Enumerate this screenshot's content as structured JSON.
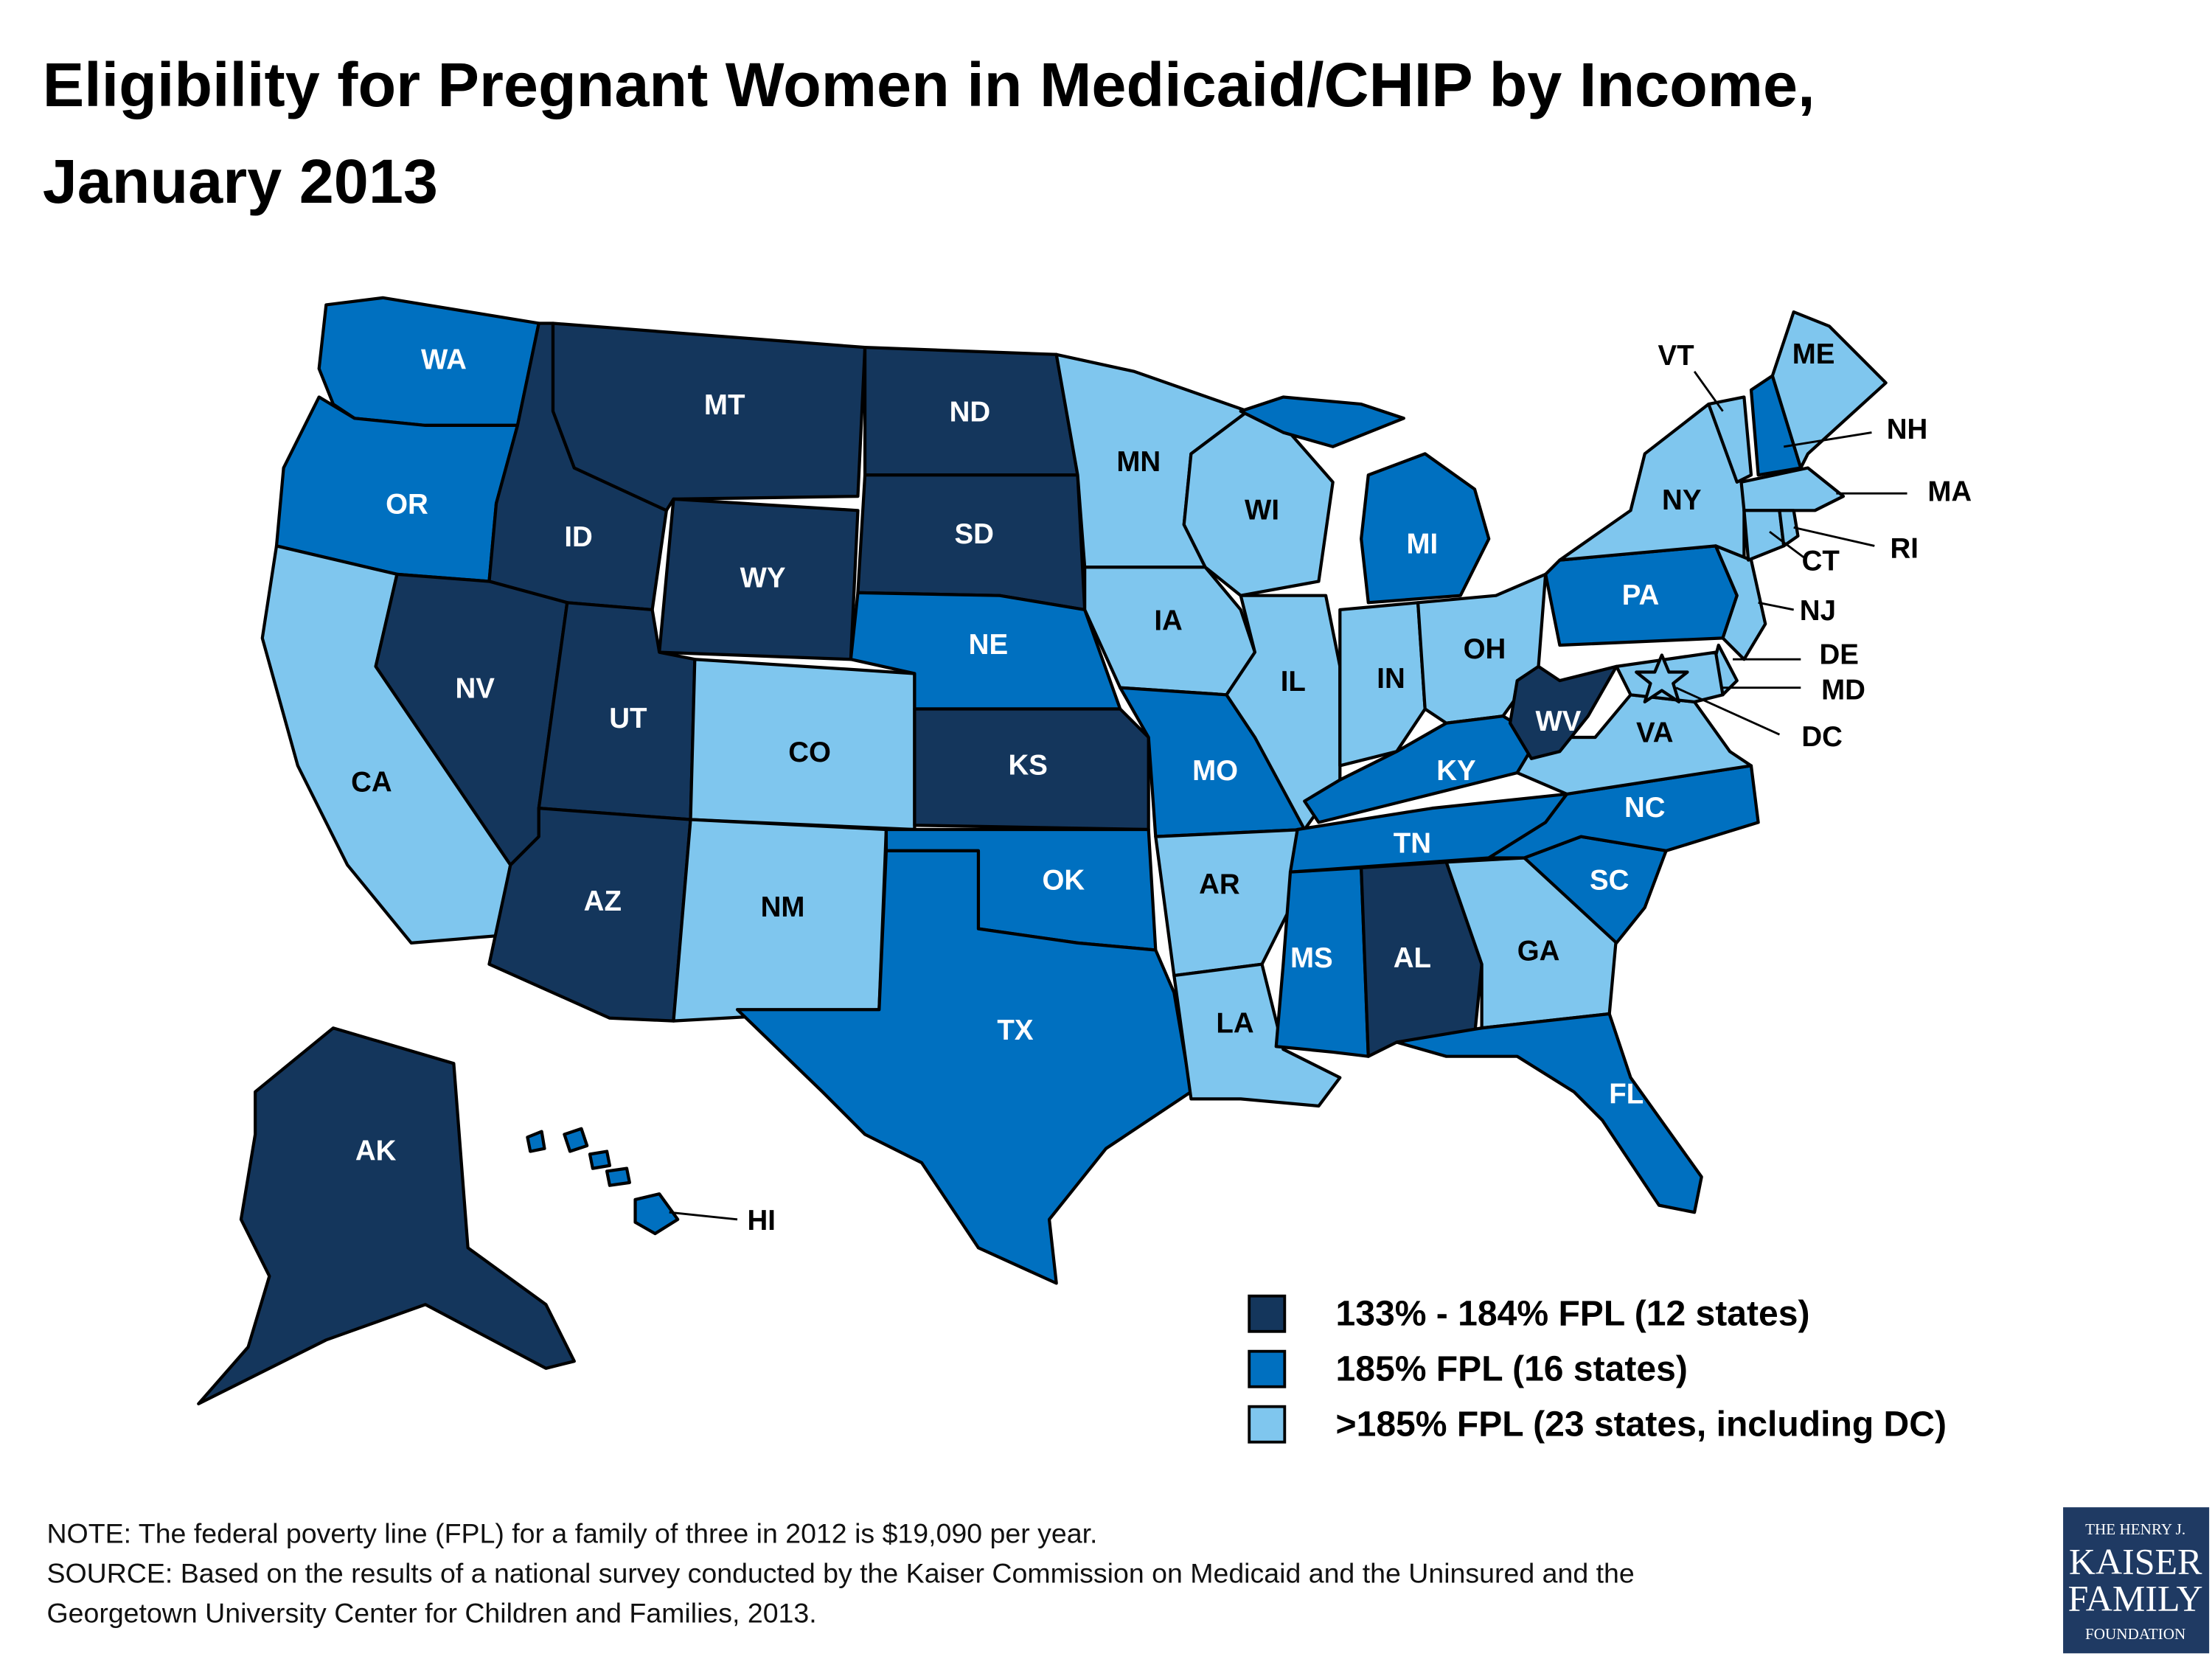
{
  "title": [
    "Eligibility for Pregnant Women in Medicaid/CHIP by Income,",
    "January 2013"
  ],
  "legend": [
    {
      "label": "133% - 184% FPL (12 states)",
      "color": "#14365c"
    },
    {
      "label": "185% FPL (16 states)",
      "color": "#0070c0"
    },
    {
      "label": ">185% FPL (23 states, including DC)",
      "color": "#7fc6ee"
    }
  ],
  "states": [
    {
      "label": "WA",
      "group": 1
    },
    {
      "label": "OR",
      "group": 1
    },
    {
      "label": "CA",
      "group": 2
    },
    {
      "label": "ID",
      "group": 0
    },
    {
      "label": "NV",
      "group": 0
    },
    {
      "label": "MT",
      "group": 0
    },
    {
      "label": "WY",
      "group": 0
    },
    {
      "label": "UT",
      "group": 0
    },
    {
      "label": "AZ",
      "group": 0
    },
    {
      "label": "CO",
      "group": 2
    },
    {
      "label": "NM",
      "group": 2
    },
    {
      "label": "ND",
      "group": 0
    },
    {
      "label": "SD",
      "group": 0
    },
    {
      "label": "NE",
      "group": 1
    },
    {
      "label": "KS",
      "group": 0
    },
    {
      "label": "OK",
      "group": 1
    },
    {
      "label": "TX",
      "group": 1
    },
    {
      "label": "MN",
      "group": 2
    },
    {
      "label": "IA",
      "group": 2
    },
    {
      "label": "MO",
      "group": 1
    },
    {
      "label": "AR",
      "group": 2
    },
    {
      "label": "LA",
      "group": 2
    },
    {
      "label": "WI",
      "group": 2
    },
    {
      "label": "IL",
      "group": 2
    },
    {
      "label": "MI",
      "group": 1
    },
    {
      "label": "IN",
      "group": 2
    },
    {
      "label": "OH",
      "group": 2
    },
    {
      "label": "KY",
      "group": 1
    },
    {
      "label": "TN",
      "group": 1
    },
    {
      "label": "MS",
      "group": 1
    },
    {
      "label": "AL",
      "group": 0
    },
    {
      "label": "GA",
      "group": 2
    },
    {
      "label": "FL",
      "group": 1
    },
    {
      "label": "SC",
      "group": 1
    },
    {
      "label": "NC",
      "group": 1
    },
    {
      "label": "VA",
      "group": 2
    },
    {
      "label": "WV",
      "group": 0
    },
    {
      "label": "PA",
      "group": 1
    },
    {
      "label": "NY",
      "group": 2
    },
    {
      "label": "NJ",
      "group": 2
    },
    {
      "label": "DE",
      "group": 2
    },
    {
      "label": "MD",
      "group": 2
    },
    {
      "label": "DC",
      "group": 2
    },
    {
      "label": "VT",
      "group": 2
    },
    {
      "label": "NH",
      "group": 1
    },
    {
      "label": "ME",
      "group": 2
    },
    {
      "label": "MA",
      "group": 2
    },
    {
      "label": "CT",
      "group": 2
    },
    {
      "label": "RI",
      "group": 2
    },
    {
      "label": "AK",
      "group": 0
    },
    {
      "label": "HI",
      "group": 1
    }
  ],
  "note": "NOTE: The federal poverty line (FPL) for a family of three in 2012 is $19,090 per year.",
  "source_lines": [
    "SOURCE: Based on the results of a national survey conducted by the Kaiser Commission on Medicaid and the Uninsured and the",
    "Georgetown University Center for Children and Families, 2013."
  ],
  "logo": [
    "THE HENRY J.",
    "KAISER",
    "FAMILY",
    "FOUNDATION"
  ]
}
